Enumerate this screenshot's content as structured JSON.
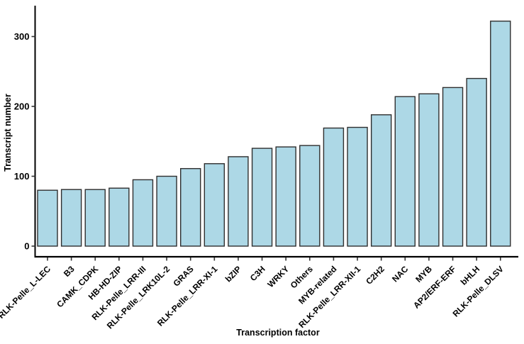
{
  "chart_data": {
    "type": "bar",
    "title": "",
    "xlabel": "Transcription factor",
    "ylabel": "Transcript number",
    "categories": [
      "RLK-Pelle_L-LEC",
      "B3",
      "CAMK_CDPK",
      "HB-HD-ZIP",
      "RLK-Pelle_LRR-III",
      "RLK-Pelle_LRK10L-2",
      "GRAS",
      "RLK-Pelle_LRR-XI-1",
      "bZIP",
      "C3H",
      "WRKY",
      "Others",
      "MYB-related",
      "RLK-Pelle_LRR-XII-1",
      "C2H2",
      "NAC",
      "MYB",
      "AP2/ERF-ERF",
      "bHLH",
      "RLK-Pelle_DLSV"
    ],
    "values": [
      80,
      81,
      81,
      83,
      95,
      100,
      111,
      118,
      128,
      140,
      142,
      144,
      169,
      170,
      188,
      214,
      218,
      227,
      240,
      322
    ],
    "yticks": [
      0,
      100,
      200,
      300
    ],
    "ylim": [
      0,
      344
    ],
    "grid": false,
    "legend_position": "none",
    "bar_fill": "#ADD8E6",
    "bar_stroke": "#2F2F2F",
    "axis_color": "#000000",
    "tick_color": "#333333",
    "text_color": "#000000",
    "background": "#FFFFFF"
  }
}
